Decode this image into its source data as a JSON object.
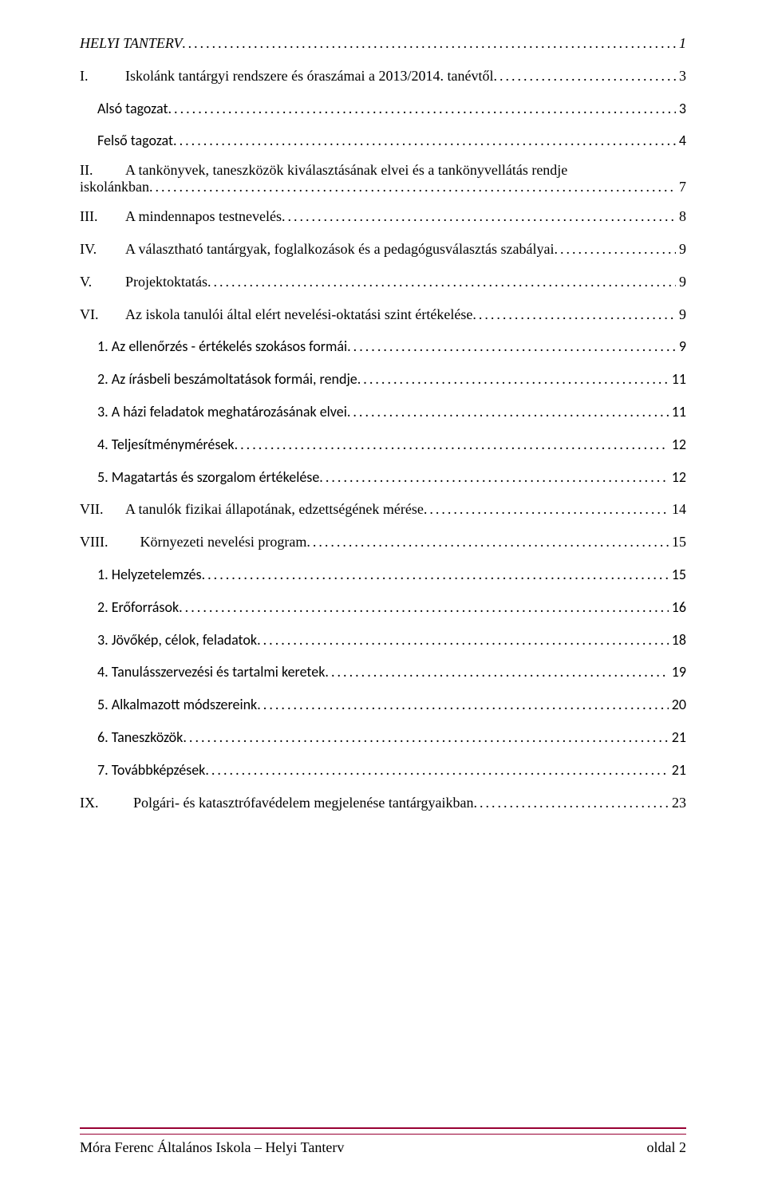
{
  "toc": [
    {
      "number": "",
      "text": "HELYI  TANTERV",
      "page": "1",
      "style": "italic",
      "indent": "0"
    },
    {
      "number": "I.",
      "text": "Iskolánk tantárgyi rendszere és óraszámai a 2013/2014. tanévtől",
      "page": "3",
      "style": "roman",
      "indent": "0"
    },
    {
      "number": "",
      "text": "Alsó tagozat",
      "page": "3",
      "style": "calibri",
      "indent": "1"
    },
    {
      "number": "",
      "text": "Felső tagozat",
      "page": "4",
      "style": "calibri",
      "indent": "1"
    },
    {
      "number": "II.",
      "text": "A tankönyvek, taneszközök kiválasztásának elvei és a tankönyvellátás rendje",
      "text2": "iskolánkban",
      "page": "7",
      "style": "roman multiline",
      "indent": "0"
    },
    {
      "number": "III.",
      "text": "A mindennapos testnevelés",
      "page": "8",
      "style": "roman",
      "indent": "0"
    },
    {
      "number": "IV.",
      "text": "A választható tantárgyak, foglalkozások és a pedagógusválasztás szabályai",
      "page": "9",
      "style": "roman",
      "indent": "0"
    },
    {
      "number": "V.",
      "text": "Projektoktatás",
      "page": "9",
      "style": "roman",
      "indent": "0"
    },
    {
      "number": "VI.",
      "text": "Az iskola tanulói által elért nevelési-oktatási szint értékelése",
      "page": "9",
      "style": "roman",
      "indent": "0"
    },
    {
      "number": "",
      "text": "1. Az ellenőrzés - értékelés szokásos formái",
      "page": "9",
      "style": "calibri",
      "indent": "2"
    },
    {
      "number": "",
      "text": "2. Az írásbeli beszámoltatások formái, rendje",
      "page": "11",
      "style": "calibri",
      "indent": "2"
    },
    {
      "number": "",
      "text": "3. A házi feladatok meghatározásának elvei",
      "page": "11",
      "style": "calibri",
      "indent": "2"
    },
    {
      "number": "",
      "text": "4. Teljesítménymérések",
      "page": "12",
      "style": "calibri",
      "indent": "2"
    },
    {
      "number": "",
      "text": "5. Magatartás és szorgalom értékelése",
      "page": "12",
      "style": "calibri",
      "indent": "2"
    },
    {
      "number": "VII.",
      "text": "A tanulók fizikai állapotának, edzettségének mérése",
      "page": "14",
      "style": "roman",
      "indent": "0"
    },
    {
      "number": "VIII.",
      "text": "Környezeti nevelési program",
      "page": "15",
      "style": "roman viii",
      "indent": "0"
    },
    {
      "number": "",
      "text": "1. Helyzetelemzés",
      "page": "15",
      "style": "calibri",
      "indent": "2"
    },
    {
      "number": "",
      "text": "2. Erőforrások",
      "page": "16",
      "style": "calibri",
      "indent": "2"
    },
    {
      "number": "",
      "text": "3. Jövőkép, célok, feladatok",
      "page": "18",
      "style": "calibri",
      "indent": "2"
    },
    {
      "number": "",
      "text": "4. Tanulásszervezési és tartalmi keretek",
      "page": "19",
      "style": "calibri",
      "indent": "2"
    },
    {
      "number": "",
      "text": "5. Alkalmazott módszereink",
      "page": "20",
      "style": "calibri",
      "indent": "2"
    },
    {
      "number": "",
      "text": "6. Taneszközök",
      "page": "21",
      "style": "calibri",
      "indent": "2"
    },
    {
      "number": "",
      "text": "7. Továbbképzések",
      "page": "21",
      "style": "calibri",
      "indent": "2"
    },
    {
      "number": "IX.",
      "text": "Polgári- és katasztrófavédelem megjelenése tantárgyaikban",
      "page": "23",
      "style": "roman ix",
      "indent": "0"
    }
  ],
  "footer": {
    "left": "Móra Ferenc Általános Iskola – Helyi Tanterv",
    "right": "oldal 2"
  },
  "colors": {
    "text": "#000000",
    "accent": "#980033"
  }
}
